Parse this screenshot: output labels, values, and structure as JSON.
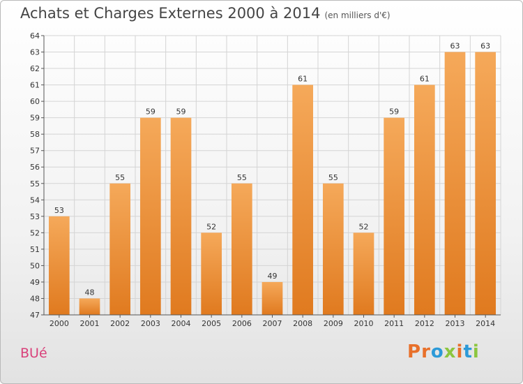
{
  "header": {
    "title": "Achats et Charges Externes 2000 à 2014",
    "unit": "(en milliers d'€)"
  },
  "footer": {
    "commune": "BUé",
    "logo_text": "Proxiti",
    "logo_letters": [
      "P",
      "r",
      "o",
      "x",
      "i",
      "t",
      "i"
    ],
    "logo_colors": [
      "#e8702a",
      "#e8702a",
      "#2c9ad8",
      "#8cc63f",
      "#e8702a",
      "#2c9ad8",
      "#8cc63f"
    ]
  },
  "colors": {
    "bar_top": "#f5a95a",
    "bar_bottom": "#e07a1f",
    "grid": "#d4d4d4",
    "axis": "#555555",
    "commune": "#d9417a"
  },
  "chart_data": {
    "type": "bar",
    "title": "Achats et Charges Externes 2000 à 2014",
    "subtitle": "(en milliers d'€)",
    "xlabel": "",
    "ylabel": "",
    "categories": [
      "2000",
      "2001",
      "2002",
      "2003",
      "2004",
      "2005",
      "2006",
      "2007",
      "2008",
      "2009",
      "2010",
      "2011",
      "2012",
      "2013",
      "2014"
    ],
    "values": [
      53,
      48,
      55,
      59,
      59,
      52,
      55,
      49,
      61,
      55,
      52,
      59,
      61,
      63,
      63
    ],
    "ylim": [
      47,
      64
    ],
    "yticks": [
      47,
      48,
      49,
      50,
      51,
      52,
      53,
      54,
      55,
      56,
      57,
      58,
      59,
      60,
      61,
      62,
      63,
      64
    ],
    "grid": true,
    "data_labels": true
  }
}
